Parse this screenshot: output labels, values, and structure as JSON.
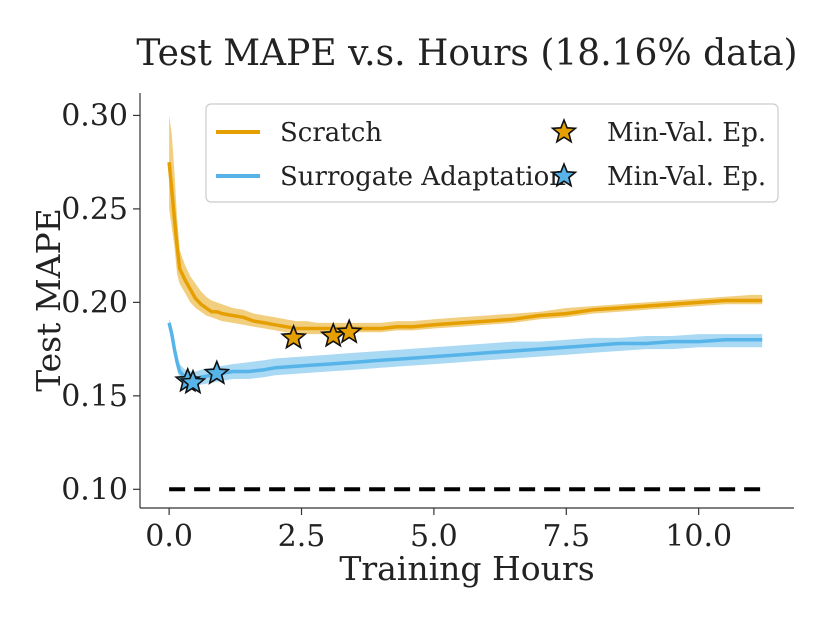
{
  "chart_data": {
    "type": "line",
    "title": "Test MAPE v.s. Hours (18.16% data)",
    "xlabel": "Training Hours",
    "ylabel": "Test MAPE",
    "xlim": [
      -0.55,
      11.8
    ],
    "ylim": [
      0.09,
      0.312
    ],
    "xticks": [
      0.0,
      2.5,
      5.0,
      7.5,
      10.0
    ],
    "xtick_labels": [
      "0.0",
      "2.5",
      "5.0",
      "7.5",
      "10.0"
    ],
    "yticks": [
      0.1,
      0.15,
      0.2,
      0.25,
      0.3
    ],
    "ytick_labels": [
      "0.10",
      "0.15",
      "0.20",
      "0.25",
      "0.30"
    ],
    "grid": false,
    "legend_position": "top-right",
    "series": [
      {
        "name": "Scratch",
        "color": "#E69F00",
        "x": [
          0.0,
          0.05,
          0.1,
          0.15,
          0.2,
          0.3,
          0.4,
          0.5,
          0.6,
          0.7,
          0.8,
          0.9,
          1.0,
          1.2,
          1.4,
          1.6,
          1.8,
          2.0,
          2.2,
          2.4,
          2.6,
          2.8,
          3.0,
          3.2,
          3.4,
          3.6,
          3.8,
          4.0,
          4.3,
          4.6,
          5.0,
          5.5,
          6.0,
          6.5,
          7.0,
          7.5,
          8.0,
          8.5,
          9.0,
          9.5,
          10.0,
          10.5,
          11.0,
          11.2
        ],
        "values": [
          0.275,
          0.26,
          0.245,
          0.23,
          0.218,
          0.212,
          0.207,
          0.202,
          0.199,
          0.197,
          0.195,
          0.195,
          0.194,
          0.193,
          0.192,
          0.19,
          0.189,
          0.188,
          0.187,
          0.186,
          0.186,
          0.186,
          0.186,
          0.186,
          0.186,
          0.186,
          0.186,
          0.186,
          0.187,
          0.187,
          0.188,
          0.189,
          0.19,
          0.191,
          0.193,
          0.194,
          0.196,
          0.197,
          0.198,
          0.199,
          0.2,
          0.201,
          0.201,
          0.201
        ],
        "band_lower": [
          0.25,
          0.24,
          0.23,
          0.215,
          0.21,
          0.205,
          0.2,
          0.197,
          0.195,
          0.193,
          0.192,
          0.191,
          0.19,
          0.189,
          0.188,
          0.187,
          0.186,
          0.185,
          0.184,
          0.183,
          0.183,
          0.183,
          0.183,
          0.183,
          0.183,
          0.184,
          0.184,
          0.184,
          0.185,
          0.185,
          0.186,
          0.187,
          0.188,
          0.189,
          0.191,
          0.192,
          0.194,
          0.195,
          0.196,
          0.197,
          0.198,
          0.199,
          0.199,
          0.199
        ],
        "band_upper": [
          0.3,
          0.29,
          0.27,
          0.245,
          0.228,
          0.22,
          0.214,
          0.21,
          0.206,
          0.203,
          0.201,
          0.2,
          0.199,
          0.197,
          0.196,
          0.194,
          0.193,
          0.192,
          0.191,
          0.19,
          0.19,
          0.189,
          0.189,
          0.189,
          0.189,
          0.189,
          0.189,
          0.189,
          0.19,
          0.19,
          0.191,
          0.192,
          0.193,
          0.194,
          0.195,
          0.197,
          0.198,
          0.199,
          0.2,
          0.201,
          0.202,
          0.203,
          0.204,
          0.204
        ]
      },
      {
        "name": "Surrogate Adaptation",
        "color": "#56B4E9",
        "x": [
          0.0,
          0.05,
          0.1,
          0.15,
          0.2,
          0.3,
          0.4,
          0.5,
          0.6,
          0.8,
          1.0,
          1.2,
          1.5,
          1.8,
          2.0,
          2.5,
          3.0,
          3.5,
          4.0,
          4.5,
          5.0,
          5.5,
          6.0,
          6.5,
          7.0,
          7.5,
          8.0,
          8.5,
          9.0,
          9.5,
          10.0,
          10.5,
          11.0,
          11.2
        ],
        "values": [
          0.189,
          0.183,
          0.175,
          0.168,
          0.163,
          0.16,
          0.159,
          0.159,
          0.16,
          0.161,
          0.162,
          0.163,
          0.163,
          0.164,
          0.165,
          0.166,
          0.167,
          0.168,
          0.169,
          0.17,
          0.171,
          0.172,
          0.173,
          0.174,
          0.175,
          0.176,
          0.177,
          0.178,
          0.178,
          0.179,
          0.179,
          0.18,
          0.18,
          0.18
        ],
        "band_lower": [
          0.186,
          0.179,
          0.171,
          0.164,
          0.159,
          0.156,
          0.155,
          0.155,
          0.156,
          0.157,
          0.158,
          0.159,
          0.159,
          0.16,
          0.161,
          0.162,
          0.163,
          0.164,
          0.165,
          0.166,
          0.167,
          0.168,
          0.169,
          0.17,
          0.171,
          0.172,
          0.173,
          0.174,
          0.175,
          0.175,
          0.176,
          0.176,
          0.176,
          0.176
        ],
        "band_upper": [
          0.191,
          0.187,
          0.179,
          0.172,
          0.167,
          0.164,
          0.163,
          0.163,
          0.164,
          0.165,
          0.166,
          0.167,
          0.168,
          0.169,
          0.17,
          0.171,
          0.172,
          0.173,
          0.174,
          0.175,
          0.176,
          0.177,
          0.178,
          0.179,
          0.179,
          0.18,
          0.181,
          0.181,
          0.182,
          0.182,
          0.183,
          0.183,
          0.183,
          0.183
        ]
      }
    ],
    "markers": [
      {
        "series": "Scratch",
        "label": "Min-Val. Ep.",
        "color": "#E69F00",
        "points": [
          [
            2.35,
            0.181
          ],
          [
            3.1,
            0.182
          ],
          [
            3.4,
            0.184
          ]
        ]
      },
      {
        "series": "Surrogate Adaptation",
        "label": "Min-Val. Ep.",
        "color": "#56B4E9",
        "points": [
          [
            0.35,
            0.158
          ],
          [
            0.45,
            0.157
          ],
          [
            0.9,
            0.162
          ]
        ]
      }
    ],
    "baseline": {
      "y": 0.1,
      "x": [
        0.0,
        11.2
      ],
      "style": "dashed",
      "color": "#000000"
    }
  }
}
